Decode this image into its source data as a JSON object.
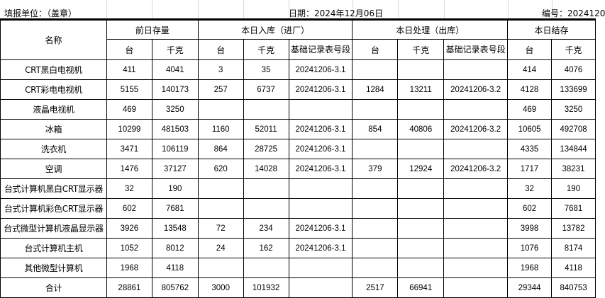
{
  "header": {
    "unit_label": "填报单位：（盖章）",
    "date_label": "日期：2024年12月06日",
    "number_label": "编号：2024120"
  },
  "columns": {
    "name": "名称",
    "prev_stock": "前日存量",
    "inbound": "本日入库（进厂）",
    "processed": "本日处理（出库）",
    "closing": "本日结存",
    "units": "台",
    "kg": "千克",
    "record_no": "基础记录表号段"
  },
  "rows": [
    {
      "name": "CRT黑白电视机",
      "prev_units": "411",
      "prev_kg": "4041",
      "in_units": "3",
      "in_kg": "35",
      "in_record": "20241206-3.1",
      "out_units": "",
      "out_kg": "",
      "out_record": "",
      "close_units": "414",
      "close_kg": "4076"
    },
    {
      "name": "CRT彩电电视机",
      "prev_units": "5155",
      "prev_kg": "140173",
      "in_units": "257",
      "in_kg": "6737",
      "in_record": "20241206-3.1",
      "out_units": "1284",
      "out_kg": "13211",
      "out_record": "20241206-3.2",
      "close_units": "4128",
      "close_kg": "133699"
    },
    {
      "name": "液晶电视机",
      "prev_units": "469",
      "prev_kg": "3250",
      "in_units": "",
      "in_kg": "",
      "in_record": "",
      "out_units": "",
      "out_kg": "",
      "out_record": "",
      "close_units": "469",
      "close_kg": "3250"
    },
    {
      "name": "冰箱",
      "prev_units": "10299",
      "prev_kg": "481503",
      "in_units": "1160",
      "in_kg": "52011",
      "in_record": "20241206-3.1",
      "out_units": "854",
      "out_kg": "40806",
      "out_record": "20241206-3.2",
      "close_units": "10605",
      "close_kg": "492708"
    },
    {
      "name": "洗衣机",
      "prev_units": "3471",
      "prev_kg": "106119",
      "in_units": "864",
      "in_kg": "28725",
      "in_record": "20241206-3.1",
      "out_units": "",
      "out_kg": "",
      "out_record": "",
      "close_units": "4335",
      "close_kg": "134844"
    },
    {
      "name": "空调",
      "prev_units": "1476",
      "prev_kg": "37127",
      "in_units": "620",
      "in_kg": "14028",
      "in_record": "20241206-3.1",
      "out_units": "379",
      "out_kg": "12924",
      "out_record": "20241206-3.2",
      "close_units": "1717",
      "close_kg": "38231"
    },
    {
      "name": "台式计算机黑白CRT显示器",
      "prev_units": "32",
      "prev_kg": "190",
      "in_units": "",
      "in_kg": "",
      "in_record": "",
      "out_units": "",
      "out_kg": "",
      "out_record": "",
      "close_units": "32",
      "close_kg": "190"
    },
    {
      "name": "台式计算机彩色CRT显示器",
      "prev_units": "602",
      "prev_kg": "7681",
      "in_units": "",
      "in_kg": "",
      "in_record": "",
      "out_units": "",
      "out_kg": "",
      "out_record": "",
      "close_units": "602",
      "close_kg": "7681"
    },
    {
      "name": "台式微型计算机液晶显示器",
      "prev_units": "3926",
      "prev_kg": "13548",
      "in_units": "72",
      "in_kg": "234",
      "in_record": "20241206-3.1",
      "out_units": "",
      "out_kg": "",
      "out_record": "",
      "close_units": "3998",
      "close_kg": "13782"
    },
    {
      "name": "台式计算机主机",
      "prev_units": "1052",
      "prev_kg": "8012",
      "in_units": "24",
      "in_kg": "162",
      "in_record": "20241206-3.1",
      "out_units": "",
      "out_kg": "",
      "out_record": "",
      "close_units": "1076",
      "close_kg": "8174"
    },
    {
      "name": "其他微型计算机",
      "prev_units": "1968",
      "prev_kg": "4118",
      "in_units": "",
      "in_kg": "",
      "in_record": "",
      "out_units": "",
      "out_kg": "",
      "out_record": "",
      "close_units": "1968",
      "close_kg": "4118"
    },
    {
      "name": "合计",
      "prev_units": "28861",
      "prev_kg": "805762",
      "in_units": "3000",
      "in_kg": "101932",
      "in_record": "",
      "out_units": "2517",
      "out_kg": "66941",
      "out_record": "",
      "close_units": "29344",
      "close_kg": "840753"
    }
  ]
}
